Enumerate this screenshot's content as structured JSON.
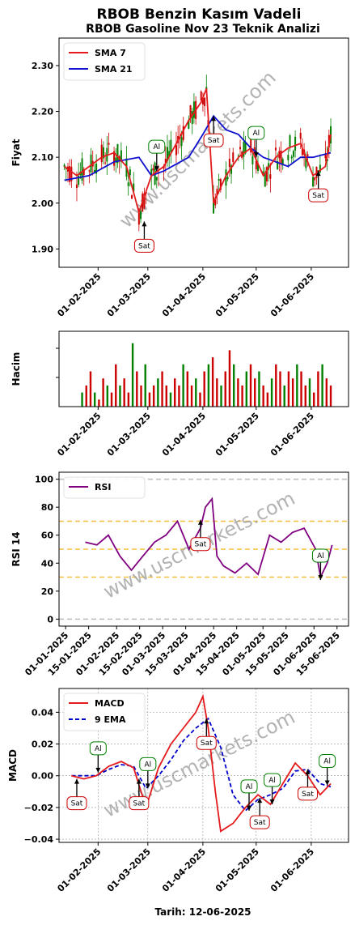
{
  "title": "RBOB Benzin Kasım Vadeli",
  "subtitle": "RBOB Gasoline Nov 23 Teknik Analizi",
  "footer": "Tarih: 12-06-2025",
  "watermark": "www.uscmarkets.com",
  "colors": {
    "up": "#008000",
    "down": "#cc0000",
    "sma7": "#e41a1c",
    "sma21": "#1010d0",
    "rsi": "#800080",
    "ema9": "#0000cc",
    "sell": "#cc0000",
    "buy": "#008000"
  },
  "chart_data": [
    {
      "type": "line",
      "panel": "price",
      "ylabel": "Fiyat",
      "ylim": [
        1.86,
        2.36
      ],
      "yticks": [
        1.9,
        2.0,
        2.1,
        2.2,
        2.3
      ],
      "ytick_labels": [
        "1.90",
        "2.00",
        "2.10",
        "2.20",
        "2.30"
      ],
      "xlim": [
        "2025-01-10",
        "2025-06-22"
      ],
      "xticks": [
        "2025-02-01",
        "2025-03-01",
        "2025-04-01",
        "2025-05-01",
        "2025-06-01"
      ],
      "xtick_labels": [
        "01-02-2025",
        "01-03-2025",
        "01-04-2025",
        "01-05-2025",
        "01-06-2025"
      ],
      "legend": "top-left",
      "series": [
        {
          "name": "SMA 7",
          "dates": [
            "2025-01-13",
            "2025-01-20",
            "2025-01-27",
            "2025-02-03",
            "2025-02-10",
            "2025-02-17",
            "2025-02-24",
            "2025-03-03",
            "2025-03-10",
            "2025-03-17",
            "2025-03-24",
            "2025-03-31",
            "2025-04-03",
            "2025-04-07",
            "2025-04-14",
            "2025-04-21",
            "2025-04-28",
            "2025-05-05",
            "2025-05-12",
            "2025-05-19",
            "2025-05-26",
            "2025-06-02",
            "2025-06-09",
            "2025-06-12"
          ],
          "values": [
            2.08,
            2.06,
            2.08,
            2.1,
            2.11,
            2.08,
            1.98,
            2.06,
            2.08,
            2.13,
            2.18,
            2.22,
            2.25,
            2.0,
            2.06,
            2.1,
            2.12,
            2.06,
            2.1,
            2.12,
            2.13,
            2.06,
            2.08,
            2.15
          ]
        },
        {
          "name": "SMA 21",
          "dates": [
            "2025-01-13",
            "2025-01-27",
            "2025-02-10",
            "2025-02-24",
            "2025-03-03",
            "2025-03-10",
            "2025-03-24",
            "2025-04-01",
            "2025-04-07",
            "2025-04-14",
            "2025-04-21",
            "2025-04-28",
            "2025-05-05",
            "2025-05-12",
            "2025-05-19",
            "2025-05-26",
            "2025-06-02",
            "2025-06-12"
          ],
          "values": [
            2.05,
            2.06,
            2.09,
            2.1,
            2.06,
            2.07,
            2.1,
            2.15,
            2.19,
            2.16,
            2.15,
            2.12,
            2.1,
            2.09,
            2.08,
            2.1,
            2.1,
            2.11
          ]
        }
      ],
      "annotations": [
        {
          "label": "Sat",
          "date": "2025-02-27",
          "value": 1.96
        },
        {
          "label": "Al",
          "date": "2025-03-06",
          "value": 2.07
        },
        {
          "label": "Sat",
          "date": "2025-04-07",
          "value": 2.19
        },
        {
          "label": "Al",
          "date": "2025-05-01",
          "value": 2.1
        },
        {
          "label": "Sat",
          "date": "2025-06-05",
          "value": 2.07
        }
      ]
    },
    {
      "type": "bar",
      "panel": "volume",
      "ylabel": "Hacim",
      "xticks": [
        "2025-02-01",
        "2025-03-01",
        "2025-04-01",
        "2025-05-01",
        "2025-06-01"
      ],
      "xtick_labels": [
        "01-02-2025",
        "01-03-2025",
        "01-04-2025",
        "01-05-2025",
        "01-06-2025"
      ],
      "values": [
        0.2,
        0.3,
        0.5,
        0.2,
        0.1,
        0.4,
        0.3,
        0.2,
        0.6,
        0.3,
        0.4,
        0.2,
        0.9,
        0.5,
        0.3,
        0.6,
        0.2,
        0.3,
        0.4,
        0.5,
        0.3,
        0.2,
        0.4,
        0.3,
        0.6,
        0.5,
        0.3,
        0.4,
        0.2,
        0.5,
        0.6,
        0.7,
        0.4,
        0.3,
        0.5,
        0.8,
        0.6,
        0.4,
        0.3,
        0.5,
        0.6,
        0.4,
        0.5,
        0.3,
        0.2,
        0.4,
        0.6,
        0.5,
        0.3,
        0.5,
        0.4,
        0.6,
        0.5,
        0.3,
        0.4,
        0.2,
        0.5,
        0.6,
        0.4,
        0.3
      ]
    },
    {
      "type": "line",
      "panel": "rsi",
      "ylabel": "RSI 14",
      "ylim": [
        -5,
        105
      ],
      "yticks": [
        0,
        20,
        40,
        60,
        80,
        100
      ],
      "ytick_labels": [
        "0",
        "20",
        "40",
        "60",
        "80",
        "100"
      ],
      "hlines": [
        0,
        30,
        50,
        70,
        100
      ],
      "xticks": [
        "2025-01-01",
        "2025-01-15",
        "2025-02-01",
        "2025-02-15",
        "2025-03-01",
        "2025-03-15",
        "2025-04-01",
        "2025-04-15",
        "2025-05-01",
        "2025-05-15",
        "2025-06-01",
        "2025-06-15"
      ],
      "xtick_labels": [
        "01-01-2025",
        "15-01-2025",
        "01-02-2025",
        "15-02-2025",
        "01-03-2025",
        "15-03-2025",
        "01-04-2025",
        "15-04-2025",
        "01-05-2025",
        "15-05-2025",
        "01-06-2025",
        "15-06-2025"
      ],
      "legend": "top-left",
      "series": [
        {
          "name": "RSI",
          "dates": [
            "2025-01-13",
            "2025-01-20",
            "2025-01-27",
            "2025-02-03",
            "2025-02-10",
            "2025-02-17",
            "2025-02-24",
            "2025-03-03",
            "2025-03-10",
            "2025-03-17",
            "2025-03-24",
            "2025-03-27",
            "2025-03-31",
            "2025-04-03",
            "2025-04-07",
            "2025-04-14",
            "2025-04-21",
            "2025-04-28",
            "2025-05-05",
            "2025-05-12",
            "2025-05-19",
            "2025-05-26",
            "2025-06-02",
            "2025-06-05",
            "2025-06-09",
            "2025-06-12"
          ],
          "values": [
            55,
            53,
            60,
            45,
            35,
            45,
            55,
            60,
            70,
            50,
            65,
            80,
            86,
            45,
            38,
            33,
            40,
            32,
            60,
            55,
            62,
            65,
            50,
            30,
            40,
            53
          ]
        }
      ],
      "annotations": [
        {
          "label": "Sat",
          "date": "2025-03-24",
          "value": 71
        },
        {
          "label": "Al",
          "date": "2025-06-05",
          "value": 28
        }
      ]
    },
    {
      "type": "line",
      "panel": "macd",
      "ylabel": "MACD",
      "xlabel": "Tarih: 12-06-2025",
      "ylim": [
        -0.042,
        0.055
      ],
      "yticks": [
        -0.04,
        -0.02,
        0.0,
        0.02,
        0.04
      ],
      "ytick_labels": [
        "−0.04",
        "−0.02",
        "0.00",
        "0.02",
        "0.04"
      ],
      "xticks": [
        "2025-02-01",
        "2025-03-01",
        "2025-04-01",
        "2025-05-01",
        "2025-06-01"
      ],
      "xtick_labels": [
        "01-02-2025",
        "01-03-2025",
        "01-04-2025",
        "01-05-2025",
        "01-06-2025"
      ],
      "grid": true,
      "legend": "top-left",
      "series": [
        {
          "name": "MACD",
          "dates": [
            "2025-01-17",
            "2025-01-24",
            "2025-01-31",
            "2025-02-07",
            "2025-02-14",
            "2025-02-21",
            "2025-02-28",
            "2025-03-07",
            "2025-03-14",
            "2025-03-21",
            "2025-03-28",
            "2025-04-01",
            "2025-04-04",
            "2025-04-08",
            "2025-04-11",
            "2025-04-18",
            "2025-04-25",
            "2025-05-02",
            "2025-05-09",
            "2025-05-16",
            "2025-05-23",
            "2025-05-30",
            "2025-06-06",
            "2025-06-12"
          ],
          "values": [
            0.0,
            -0.002,
            0.0,
            0.006,
            0.009,
            0.005,
            -0.02,
            0.005,
            0.02,
            0.03,
            0.04,
            0.05,
            0.03,
            -0.01,
            -0.035,
            -0.03,
            -0.02,
            -0.012,
            -0.018,
            -0.005,
            0.008,
            0.0,
            -0.012,
            -0.005
          ]
        },
        {
          "name": "9 EMA",
          "dates": [
            "2025-01-17",
            "2025-01-24",
            "2025-01-31",
            "2025-02-07",
            "2025-02-14",
            "2025-02-21",
            "2025-02-28",
            "2025-03-07",
            "2025-03-14",
            "2025-03-21",
            "2025-03-28",
            "2025-04-04",
            "2025-04-11",
            "2025-04-18",
            "2025-04-25",
            "2025-05-02",
            "2025-05-09",
            "2025-05-16",
            "2025-05-23",
            "2025-05-30",
            "2025-06-06",
            "2025-06-12"
          ],
          "values": [
            0.0,
            0.0,
            0.0,
            0.004,
            0.007,
            0.006,
            -0.008,
            0.0,
            0.01,
            0.022,
            0.03,
            0.036,
            0.018,
            -0.012,
            -0.022,
            -0.015,
            -0.012,
            -0.008,
            0.003,
            0.004,
            -0.005,
            -0.007
          ]
        }
      ],
      "annotations": [
        {
          "label": "Sat",
          "date": "2025-01-20",
          "value": -0.002
        },
        {
          "label": "Al",
          "date": "2025-02-01",
          "value": 0.002
        },
        {
          "label": "Sat",
          "date": "2025-02-24",
          "value": -0.002
        },
        {
          "label": "Al",
          "date": "2025-03-01",
          "value": -0.008
        },
        {
          "label": "Sat",
          "date": "2025-04-03",
          "value": 0.036
        },
        {
          "label": "Al",
          "date": "2025-04-27",
          "value": -0.022
        },
        {
          "label": "Sat",
          "date": "2025-05-03",
          "value": -0.014
        },
        {
          "label": "Al",
          "date": "2025-05-10",
          "value": -0.018
        },
        {
          "label": "Sat",
          "date": "2025-05-30",
          "value": 0.004
        },
        {
          "label": "Al",
          "date": "2025-06-10",
          "value": -0.006
        }
      ]
    }
  ]
}
